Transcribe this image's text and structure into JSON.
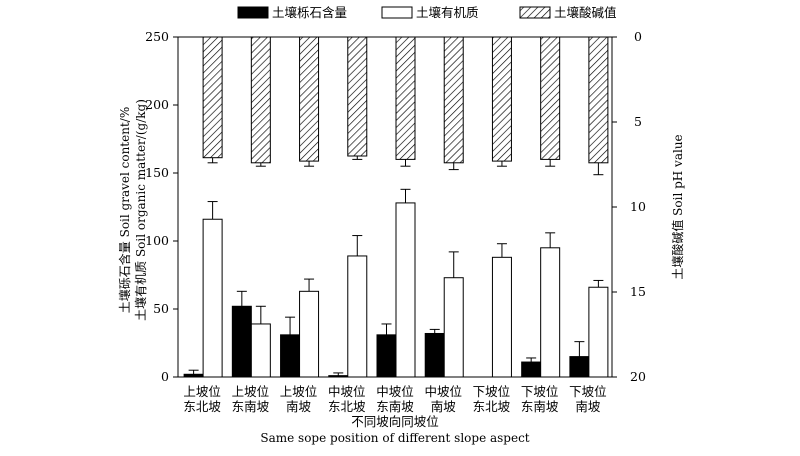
{
  "chart_data": {
    "type": "bar",
    "categories": [
      {
        "line1": "上坡位",
        "line2": "东北坡"
      },
      {
        "line1": "上坡位",
        "line2": "东南坡"
      },
      {
        "line1": "上坡位",
        "line2": "南坡"
      },
      {
        "line1": "中坡位",
        "line2": "东北坡"
      },
      {
        "line1": "中坡位",
        "line2": "东南坡"
      },
      {
        "line1": "中坡位",
        "line2": "南坡"
      },
      {
        "line1": "下坡位",
        "line2": "东北坡"
      },
      {
        "line1": "下坡位",
        "line2": "东南坡"
      },
      {
        "line1": "下坡位",
        "line2": "南坡"
      }
    ],
    "series": [
      {
        "name": "土壤栎石含量",
        "axis": "left",
        "fill": "#000000",
        "values": [
          2,
          52,
          31,
          1,
          31,
          32,
          0,
          11,
          15
        ],
        "errors": [
          3,
          11,
          13,
          2,
          8,
          3,
          0,
          3,
          11
        ]
      },
      {
        "name": "土壤有机质",
        "axis": "left",
        "fill": "#ffffff",
        "values": [
          116,
          39,
          63,
          89,
          128,
          73,
          88,
          95,
          66
        ],
        "errors": [
          13,
          13,
          9,
          15,
          10,
          19,
          10,
          11,
          5
        ]
      },
      {
        "name": "土壤酸碱值",
        "axis": "right",
        "fill": "hatch",
        "values": [
          7.1,
          7.4,
          7.3,
          7.0,
          7.2,
          7.4,
          7.3,
          7.2,
          7.4
        ],
        "errors": [
          0.3,
          0.2,
          0.3,
          0.2,
          0.4,
          0.4,
          0.3,
          0.4,
          0.7
        ]
      }
    ],
    "left_axis": {
      "ylim": [
        0,
        250
      ],
      "ticks": [
        0,
        50,
        100,
        150,
        200,
        250
      ],
      "label_line1": "土壤砾石含量 Soil gravel content/%",
      "label_line2": "土壤有机质 Soil organic matter/(g/kg)"
    },
    "right_axis": {
      "ylim": [
        0,
        20
      ],
      "inverted": true,
      "ticks": [
        0,
        5,
        10,
        15,
        20
      ],
      "label": "土壤酸碱值  Soil pH value"
    },
    "xlabel_line1": "不同坡向同坡位",
    "xlabel_line2": "Same sope position of different slope aspect",
    "legend_placement": "top",
    "grid": false
  }
}
